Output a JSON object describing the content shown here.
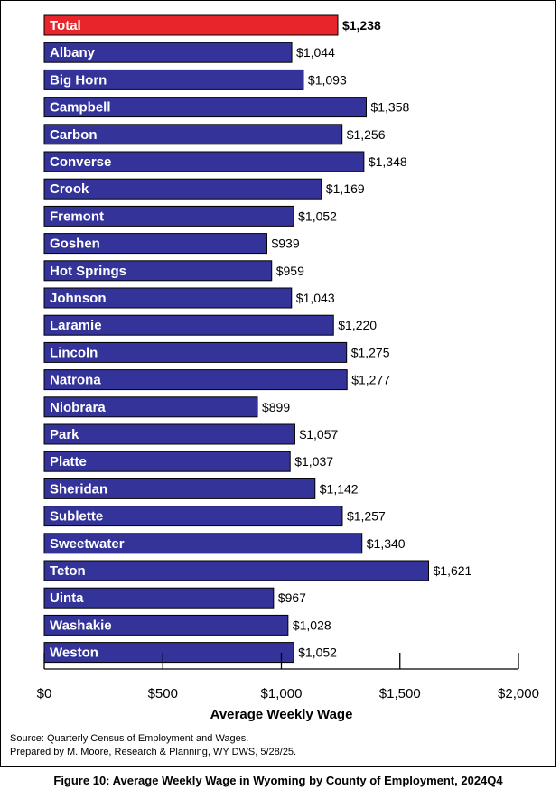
{
  "chart_data": {
    "type": "bar",
    "orientation": "horizontal",
    "categories": [
      "Total",
      "Albany",
      "Big Horn",
      "Campbell",
      "Carbon",
      "Converse",
      "Crook",
      "Fremont",
      "Goshen",
      "Hot Springs",
      "Johnson",
      "Laramie",
      "Lincoln",
      "Natrona",
      "Niobrara",
      "Park",
      "Platte",
      "Sheridan",
      "Sublette",
      "Sweetwater",
      "Teton",
      "Uinta",
      "Washakie",
      "Weston"
    ],
    "values": [
      1238,
      1044,
      1093,
      1358,
      1256,
      1348,
      1169,
      1052,
      939,
      959,
      1043,
      1220,
      1275,
      1277,
      899,
      1057,
      1037,
      1142,
      1257,
      1340,
      1621,
      967,
      1028,
      1052
    ],
    "value_labels": [
      "$1,238",
      "$1,044",
      "$1,093",
      "$1,358",
      "$1,256",
      "$1,348",
      "$1,169",
      "$1,052",
      "$939",
      "$959",
      "$1,043",
      "$1,220",
      "$1,275",
      "$1,277",
      "$899",
      "$1,057",
      "$1,037",
      "$1,142",
      "$1,257",
      "$1,340",
      "$1,621",
      "$967",
      "$1,028",
      "$1,052"
    ],
    "highlight_index": 0,
    "colors": {
      "bar": "#333399",
      "highlight": "#e8252b",
      "label_text": "#ffffff",
      "value_text": "#000000"
    },
    "xlabel": "Average Weekly Wage",
    "xlim": [
      0,
      2000
    ],
    "xticks": [
      0,
      500,
      1000,
      1500,
      2000
    ],
    "xtick_labels": [
      "$0",
      "$500",
      "$1,000",
      "$1,500",
      "$2,000"
    ],
    "grid": false,
    "legend": "none"
  },
  "source_lines": [
    "Source: Quarterly Census of Employment and Wages.",
    "Prepared by M. Moore, Research & Planning, WY DWS, 5/28/25."
  ],
  "caption": "Figure 10: Average Weekly Wage in Wyoming by County of Employment, 2024Q4"
}
